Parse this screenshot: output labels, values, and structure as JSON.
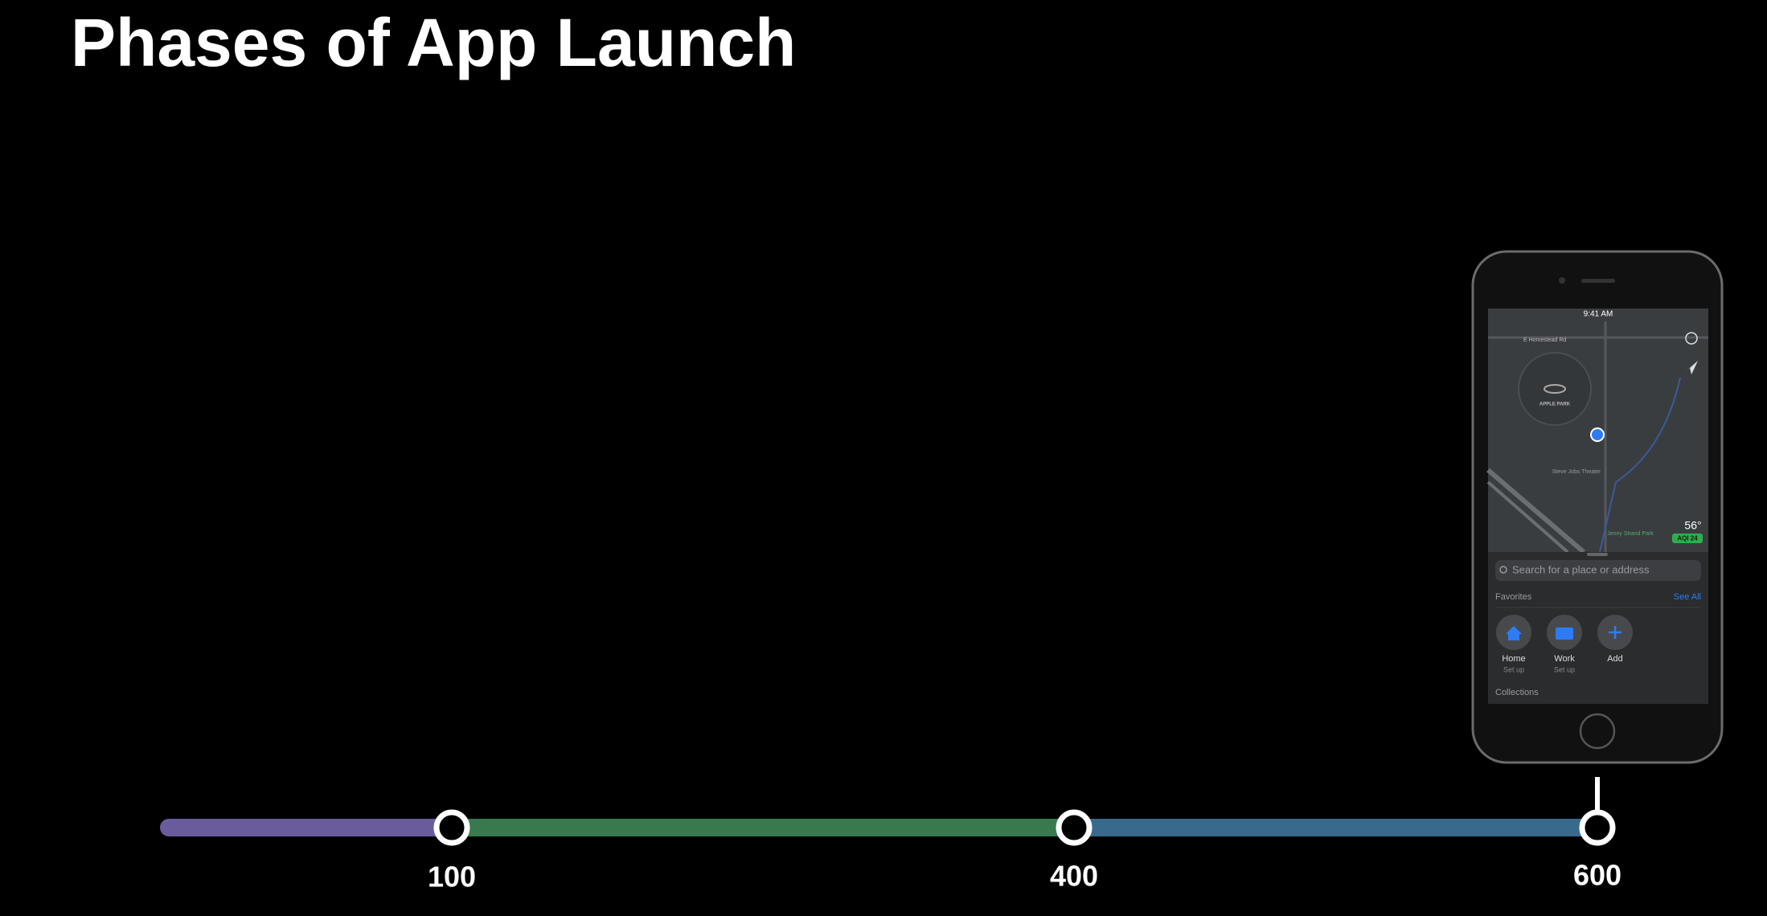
{
  "title": "Phases of App Launch",
  "timeline": {
    "markers": [
      100,
      400,
      600
    ]
  },
  "phone": {
    "status_time": "9:41 AM",
    "map": {
      "labels": [
        "E Homestead Rd",
        "APPLE PARK",
        "Steve Jobs Theater",
        "Jenny Strand Park"
      ],
      "weather": "56°",
      "aqi": "AQI 24"
    },
    "search_placeholder": "Search for a place or address",
    "favorites": {
      "title": "Favorites",
      "see_all": "See All",
      "items": [
        {
          "name": "Home",
          "subtitle": "Set up"
        },
        {
          "name": "Work",
          "subtitle": "Set up"
        },
        {
          "name": "Add"
        }
      ]
    },
    "collections": "Collections"
  }
}
